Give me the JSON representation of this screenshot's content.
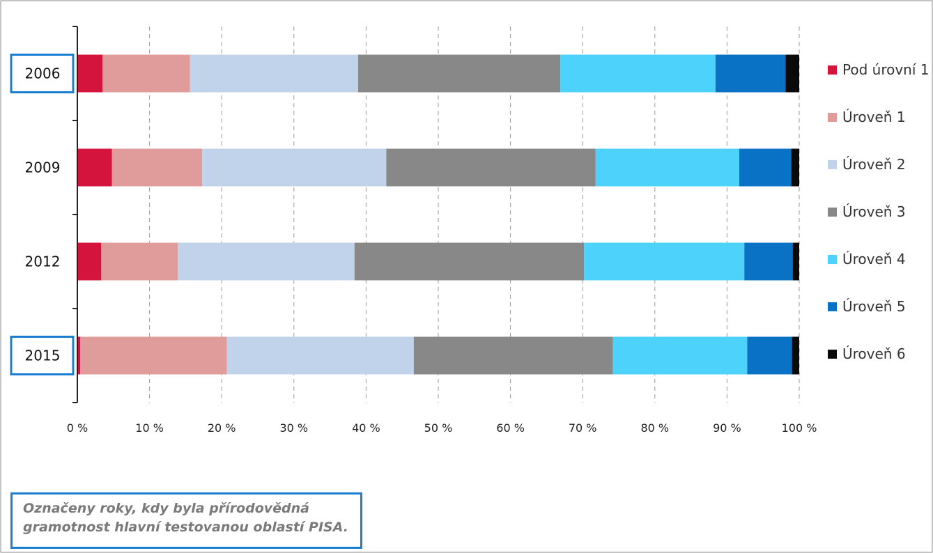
{
  "chart_data": {
    "type": "bar",
    "orientation": "horizontal",
    "stacked": "percent",
    "categories": [
      "2006",
      "2009",
      "2012",
      "2015"
    ],
    "highlighted_categories": [
      "2006",
      "2015"
    ],
    "series": [
      {
        "name": "Pod úrovní 1",
        "color": "#d4143c",
        "values": [
          3.5,
          4.8,
          3.3,
          0.4
        ]
      },
      {
        "name": "Úroveň 1",
        "color": "#e09b9b",
        "values": [
          12.1,
          12.5,
          10.6,
          20.3
        ]
      },
      {
        "name": "Úroveň 2",
        "color": "#c1d3ea",
        "values": [
          23.3,
          25.5,
          24.5,
          25.9
        ]
      },
      {
        "name": "Úroveň 3",
        "color": "#888888",
        "values": [
          28.0,
          29.0,
          31.8,
          27.6
        ]
      },
      {
        "name": "Úroveň 4",
        "color": "#4dd2fb",
        "values": [
          21.5,
          19.9,
          22.2,
          18.6
        ]
      },
      {
        "name": "Úroveň 5",
        "color": "#0a72c4",
        "values": [
          9.7,
          7.2,
          6.7,
          6.2
        ]
      },
      {
        "name": "Úroveň 6",
        "color": "#0a0a0a",
        "values": [
          1.9,
          1.1,
          0.9,
          1.0
        ]
      }
    ],
    "xlim": [
      0,
      100
    ],
    "xticks": [
      "0 %",
      "10 %",
      "20 %",
      "30 %",
      "40 %",
      "50 %",
      "60 %",
      "70 %",
      "80 %",
      "90 %",
      "100 %"
    ],
    "grid": "vertical dashed",
    "legend": "right"
  },
  "note": {
    "line1": "Označeny roky, kdy byla přírodovědná",
    "line2": "gramotnost hlavní testovanou oblastí PISA."
  },
  "colors": {
    "highlight_border": "#1a7fd0"
  }
}
